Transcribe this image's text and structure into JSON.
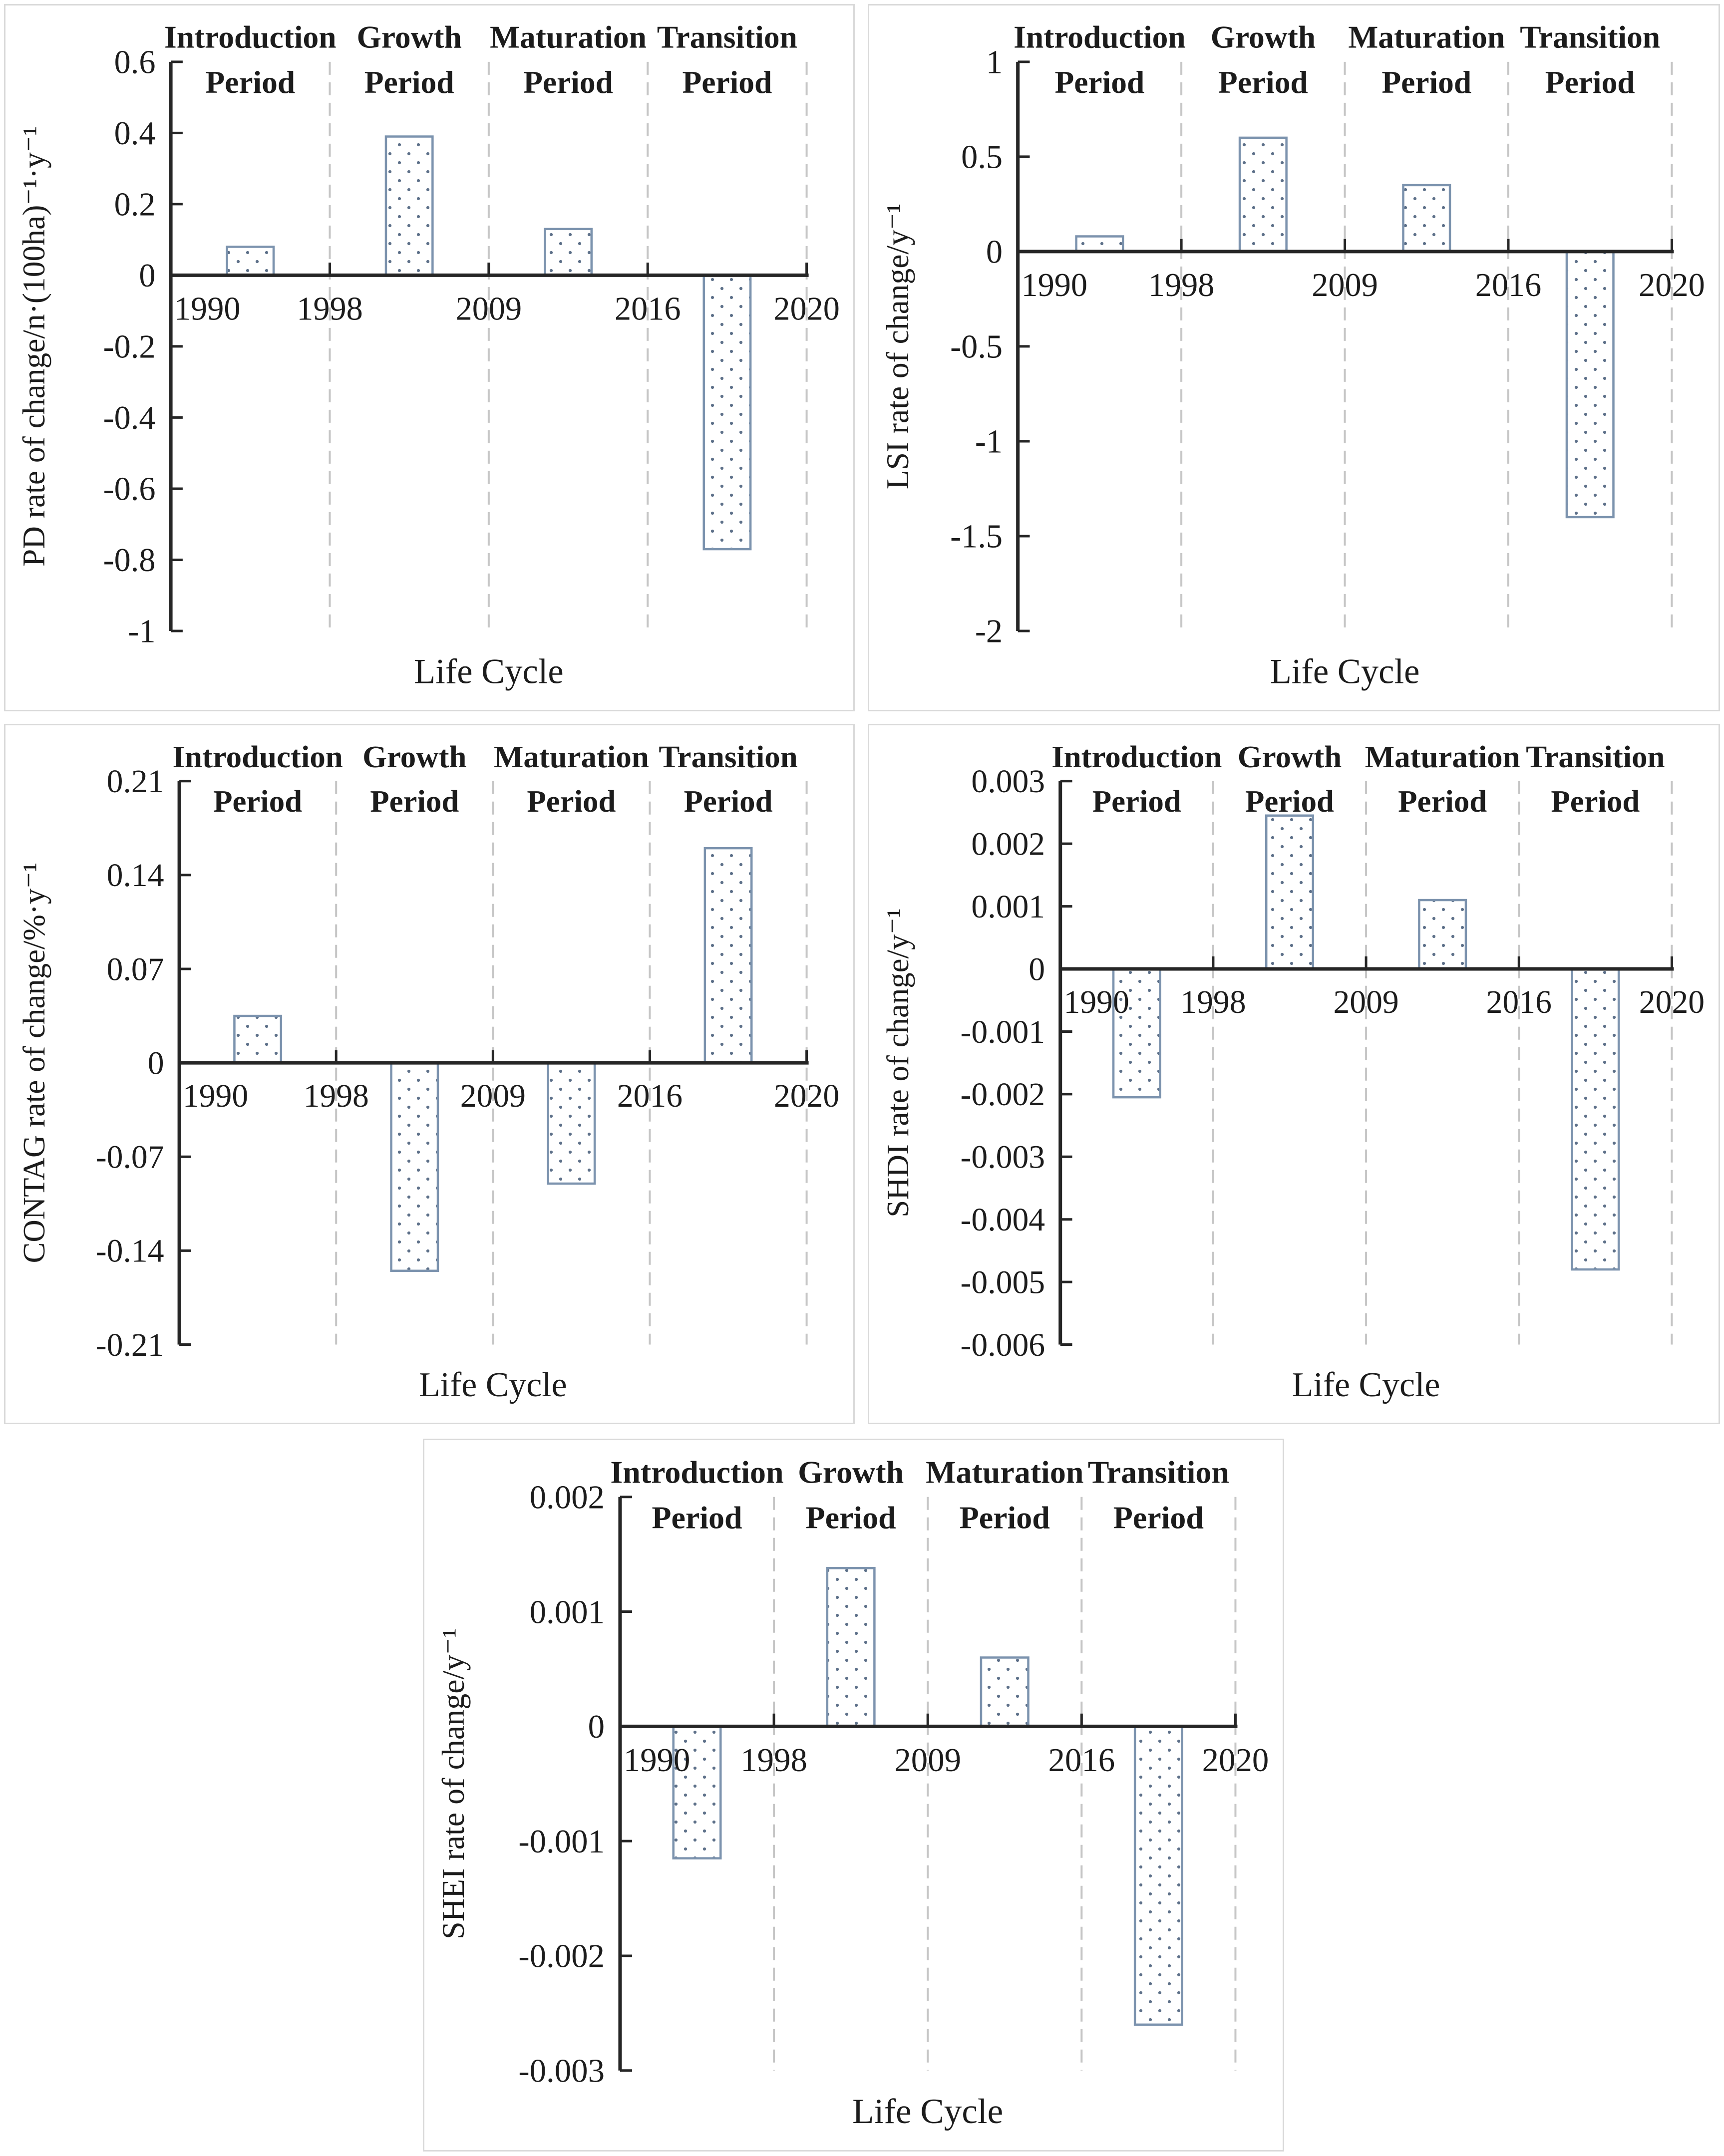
{
  "figure": {
    "description": "Rates of change of five landscape pattern indices across urban life-cycle periods",
    "xlabel": "Life Cycle",
    "x_tick_labels": [
      "1990",
      "1998",
      "2009",
      "2016",
      "2020"
    ],
    "period_labels": [
      [
        "Introduction",
        "Period"
      ],
      [
        "Growth",
        "Period"
      ],
      [
        "Maturation",
        "Period"
      ],
      [
        "Transition",
        "Period"
      ]
    ]
  },
  "colors": {
    "background": "#ffffff",
    "panel_border": "#d9d9d9",
    "axis": "#262626",
    "text": "#1c1c1c",
    "gridline": "#c6c6c6",
    "bar_stroke": "#7c93ae",
    "bar_dot": "#5d7089",
    "bar_fill": "#ffffff"
  },
  "chart_data": [
    {
      "metric": "PD",
      "type": "bar",
      "ylabel": "PD rate of change/n·(100ha)⁻¹·y⁻¹",
      "xlabel": "Life Cycle",
      "categories": [
        "Introduction Period",
        "Growth Period",
        "Maturation Period",
        "Transition Period"
      ],
      "x_tick_labels": [
        "1990",
        "1998",
        "2009",
        "2016",
        "2020"
      ],
      "values": [
        0.08,
        0.39,
        0.13,
        -0.77
      ],
      "ylim": [
        -1,
        0.6
      ],
      "ytick_values": [
        0.6,
        0.4,
        0.2,
        0,
        -0.2,
        -0.4,
        -0.6,
        -0.8,
        -1
      ],
      "ytick_labels": [
        "0.6",
        "0.4",
        "0.2",
        "0",
        "-0.2",
        "-0.4",
        "-0.6",
        "-0.8",
        "-1"
      ],
      "grid": "vertical-dashed-period-separators",
      "legend": "none",
      "plot_left_frac": 0.195
    },
    {
      "metric": "LSI",
      "type": "bar",
      "ylabel": "LSI rate of change/y⁻¹",
      "xlabel": "Life Cycle",
      "categories": [
        "Introduction Period",
        "Growth Period",
        "Maturation Period",
        "Transition Period"
      ],
      "x_tick_labels": [
        "1990",
        "1998",
        "2009",
        "2016",
        "2020"
      ],
      "values": [
        0.08,
        0.6,
        0.35,
        -1.4
      ],
      "ylim": [
        -2,
        1
      ],
      "ytick_values": [
        1,
        0.5,
        0,
        -0.5,
        -1,
        -1.5,
        -2
      ],
      "ytick_labels": [
        "1",
        "0.5",
        "0",
        "-0.5",
        "-1",
        "-1.5",
        "-2"
      ],
      "grid": "vertical-dashed-period-separators",
      "legend": "none",
      "plot_left_frac": 0.175
    },
    {
      "metric": "CONTAG",
      "type": "bar",
      "ylabel": "CONTAG rate of change/%·y⁻¹",
      "xlabel": "Life Cycle",
      "categories": [
        "Introduction Period",
        "Growth Period",
        "Maturation Period",
        "Transition Period"
      ],
      "x_tick_labels": [
        "1990",
        "1998",
        "2009",
        "2016",
        "2020"
      ],
      "values": [
        0.035,
        -0.155,
        -0.09,
        0.16
      ],
      "ylim": [
        -0.21,
        0.21
      ],
      "ytick_values": [
        0.21,
        0.14,
        0.07,
        0,
        -0.07,
        -0.14,
        -0.21
      ],
      "ytick_labels": [
        "0.21",
        "0.14",
        "0.07",
        "0",
        "-0.07",
        "-0.14",
        "-0.21"
      ],
      "grid": "vertical-dashed-period-separators",
      "legend": "none",
      "plot_left_frac": 0.205
    },
    {
      "metric": "SHDI",
      "type": "bar",
      "ylabel": "SHDI rate of change/y⁻¹",
      "xlabel": "Life Cycle",
      "categories": [
        "Introduction Period",
        "Growth Period",
        "Maturation Period",
        "Transition Period"
      ],
      "x_tick_labels": [
        "1990",
        "1998",
        "2009",
        "2016",
        "2020"
      ],
      "values": [
        -0.00205,
        0.00245,
        0.0011,
        -0.0048
      ],
      "ylim": [
        -0.006,
        0.003
      ],
      "ytick_values": [
        0.003,
        0.002,
        0.001,
        0,
        -0.001,
        -0.002,
        -0.003,
        -0.004,
        -0.005,
        -0.006
      ],
      "ytick_labels": [
        "0.003",
        "0.002",
        "0.001",
        "0",
        "-0.001",
        "-0.002",
        "-0.003",
        "-0.004",
        "-0.005",
        "-0.006"
      ],
      "grid": "vertical-dashed-period-separators",
      "legend": "none",
      "plot_left_frac": 0.225
    },
    {
      "metric": "SHEI",
      "type": "bar",
      "ylabel": "SHEI rate of change/y⁻¹",
      "xlabel": "Life Cycle",
      "categories": [
        "Introduction Period",
        "Growth Period",
        "Maturation Period",
        "Transition Period"
      ],
      "x_tick_labels": [
        "1990",
        "1998",
        "2009",
        "2016",
        "2020"
      ],
      "values": [
        -0.00115,
        0.00138,
        0.0006,
        -0.0026
      ],
      "ylim": [
        -0.003,
        0.002
      ],
      "ytick_values": [
        0.002,
        0.001,
        0,
        -0.001,
        -0.002,
        -0.003
      ],
      "ytick_labels": [
        "0.002",
        "0.001",
        "0",
        "-0.001",
        "-0.002",
        "-0.003"
      ],
      "grid": "vertical-dashed-period-separators",
      "legend": "none",
      "plot_left_frac": 0.228
    }
  ]
}
